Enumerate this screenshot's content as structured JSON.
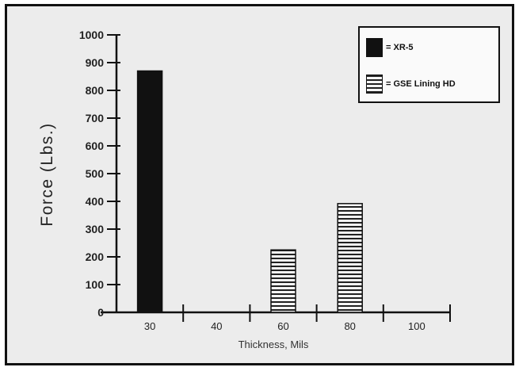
{
  "chart_data": {
    "type": "bar",
    "categories": [
      "30",
      "40",
      "60",
      "80",
      "100"
    ],
    "series": [
      {
        "name": "XR-5",
        "values": [
          870,
          null,
          null,
          null,
          null
        ],
        "color": "#111111",
        "pattern": "solid"
      },
      {
        "name": "GSE Lining HD",
        "values": [
          null,
          null,
          225,
          392,
          null
        ],
        "color": "#111111",
        "pattern": "horizontal-stripes"
      }
    ],
    "xlabel": "Thickness, Mils",
    "ylabel": "Force (Lbs.)",
    "ylim": [
      0,
      1000
    ],
    "yticks": [
      0,
      100,
      200,
      300,
      400,
      500,
      600,
      700,
      800,
      900,
      1000
    ],
    "grid": false,
    "legend_position": "top-right",
    "legend": [
      {
        "label": "= XR-5",
        "series": "XR-5"
      },
      {
        "label": "= GSE Lining HD",
        "series": "GSE Lining HD"
      }
    ]
  }
}
